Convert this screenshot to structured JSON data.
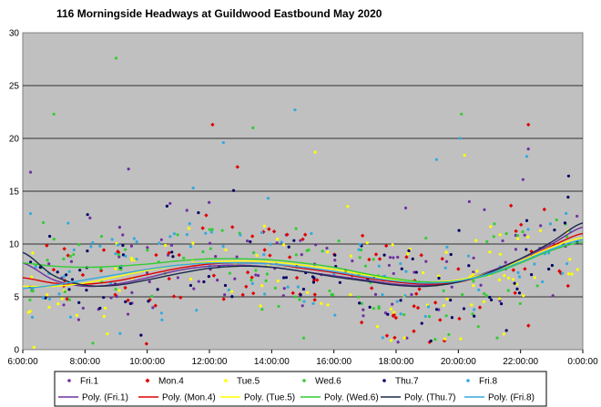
{
  "chart_data": {
    "type": "scatter",
    "title": "116 Morningside  Headways  at Guildwood  Eastbound  May 2020",
    "xlabel": "",
    "ylabel": "",
    "x_ticks": [
      "6:00:00",
      "8:00:00",
      "10:00:00",
      "12:00:00",
      "14:00:00",
      "16:00:00",
      "18:00:00",
      "20:00:00",
      "22:00:00",
      "0:00:00"
    ],
    "x_range_hours": [
      6,
      24
    ],
    "ylim": [
      0,
      30
    ],
    "y_ticks": [
      0,
      5,
      10,
      15,
      20,
      25,
      30
    ],
    "grid": "horizontal",
    "plot_background": "#c0c0c0",
    "legend_position": "bottom",
    "series": [
      {
        "name": "Fri.1",
        "color": "#7030a0",
        "marker": "dot"
      },
      {
        "name": "Mon.4",
        "color": "#e00000",
        "marker": "diamond"
      },
      {
        "name": "Tue.5",
        "color": "#ffff00",
        "marker": "dot"
      },
      {
        "name": "Wed.6",
        "color": "#33cc33",
        "marker": "dot"
      },
      {
        "name": "Thu.7",
        "color": "#000066",
        "marker": "dot"
      },
      {
        "name": "Fri.8",
        "color": "#33aadd",
        "marker": "dot"
      }
    ],
    "trendlines": [
      {
        "name": "Poly. (Fri.1)",
        "color": "#7030a0",
        "points": [
          [
            6,
            8.2
          ],
          [
            7,
            6.6
          ],
          [
            8,
            6.0
          ],
          [
            9,
            6.2
          ],
          [
            10,
            6.8
          ],
          [
            11,
            7.5
          ],
          [
            12,
            7.9
          ],
          [
            13,
            8.0
          ],
          [
            14,
            7.8
          ],
          [
            15,
            7.4
          ],
          [
            16,
            7.0
          ],
          [
            17,
            6.6
          ],
          [
            18,
            6.2
          ],
          [
            19,
            6.1
          ],
          [
            20,
            6.5
          ],
          [
            21,
            7.4
          ],
          [
            22,
            8.6
          ],
          [
            23,
            10.0
          ],
          [
            24,
            11.6
          ]
        ]
      },
      {
        "name": "Poly. (Mon.4)",
        "color": "#e00000",
        "points": [
          [
            6,
            6.8
          ],
          [
            7,
            6.3
          ],
          [
            8,
            6.2
          ],
          [
            9,
            6.5
          ],
          [
            10,
            7.1
          ],
          [
            11,
            7.7
          ],
          [
            12,
            8.1
          ],
          [
            13,
            8.2
          ],
          [
            14,
            8.1
          ],
          [
            15,
            7.7
          ],
          [
            16,
            7.3
          ],
          [
            17,
            6.8
          ],
          [
            18,
            6.4
          ],
          [
            19,
            6.2
          ],
          [
            20,
            6.4
          ],
          [
            21,
            7.2
          ],
          [
            22,
            8.4
          ],
          [
            23,
            9.8
          ],
          [
            24,
            11.0
          ]
        ]
      },
      {
        "name": "Poly. (Tue.5)",
        "color": "#ffff00",
        "points": [
          [
            6,
            6.0
          ],
          [
            7,
            6.0
          ],
          [
            8,
            6.3
          ],
          [
            9,
            6.9
          ],
          [
            10,
            7.5
          ],
          [
            11,
            8.0
          ],
          [
            12,
            8.3
          ],
          [
            13,
            8.4
          ],
          [
            14,
            8.3
          ],
          [
            15,
            8.0
          ],
          [
            16,
            7.6
          ],
          [
            17,
            7.1
          ],
          [
            18,
            6.6
          ],
          [
            19,
            6.4
          ],
          [
            20,
            6.6
          ],
          [
            21,
            7.3
          ],
          [
            22,
            8.4
          ],
          [
            23,
            9.7
          ],
          [
            24,
            10.6
          ]
        ]
      },
      {
        "name": "Poly. (Wed.6)",
        "color": "#33cc33",
        "points": [
          [
            6,
            8.2
          ],
          [
            7,
            7.9
          ],
          [
            8,
            7.8
          ],
          [
            9,
            7.9
          ],
          [
            10,
            8.1
          ],
          [
            11,
            8.4
          ],
          [
            12,
            8.6
          ],
          [
            13,
            8.6
          ],
          [
            14,
            8.5
          ],
          [
            15,
            8.2
          ],
          [
            16,
            7.8
          ],
          [
            17,
            7.2
          ],
          [
            18,
            6.7
          ],
          [
            19,
            6.4
          ],
          [
            20,
            6.5
          ],
          [
            21,
            7.1
          ],
          [
            22,
            8.2
          ],
          [
            23,
            9.4
          ],
          [
            24,
            10.2
          ]
        ]
      },
      {
        "name": "Poly. (Thu.7)",
        "color": "#1a2a4a",
        "points": [
          [
            6,
            9.2
          ],
          [
            7,
            7.0
          ],
          [
            8,
            6.1
          ],
          [
            9,
            6.1
          ],
          [
            10,
            6.6
          ],
          [
            11,
            7.2
          ],
          [
            12,
            7.7
          ],
          [
            13,
            7.9
          ],
          [
            14,
            7.8
          ],
          [
            15,
            7.4
          ],
          [
            16,
            6.9
          ],
          [
            17,
            6.5
          ],
          [
            18,
            6.1
          ],
          [
            19,
            6.0
          ],
          [
            20,
            6.4
          ],
          [
            21,
            7.3
          ],
          [
            22,
            8.6
          ],
          [
            23,
            10.2
          ],
          [
            24,
            12.0
          ]
        ]
      },
      {
        "name": "Poly. (Fri.8)",
        "color": "#33aadd",
        "points": [
          [
            6,
            5.8
          ],
          [
            7,
            6.1
          ],
          [
            8,
            6.6
          ],
          [
            9,
            7.1
          ],
          [
            10,
            7.6
          ],
          [
            11,
            8.0
          ],
          [
            12,
            8.2
          ],
          [
            13,
            8.2
          ],
          [
            14,
            8.1
          ],
          [
            15,
            7.8
          ],
          [
            16,
            7.4
          ],
          [
            17,
            6.9
          ],
          [
            18,
            6.5
          ],
          [
            19,
            6.3
          ],
          [
            20,
            6.5
          ],
          [
            21,
            7.2
          ],
          [
            22,
            8.3
          ],
          [
            23,
            9.5
          ],
          [
            24,
            10.4
          ]
        ]
      }
    ],
    "notable_points": [
      {
        "series": "Wed.6",
        "x": 9.0,
        "y": 27.6
      },
      {
        "series": "Fri.8",
        "x": 14.75,
        "y": 22.7
      },
      {
        "series": "Wed.6",
        "x": 7.0,
        "y": 22.3
      },
      {
        "series": "Wed.6",
        "x": 20.1,
        "y": 22.3
      },
      {
        "series": "Mon.4",
        "x": 12.1,
        "y": 21.3
      },
      {
        "series": "Mon.4",
        "x": 22.25,
        "y": 21.3
      },
      {
        "series": "Wed.6",
        "x": 13.4,
        "y": 21.0
      },
      {
        "series": "Fri.8",
        "x": 20.05,
        "y": 20.0
      },
      {
        "series": "Fri.8",
        "x": 12.45,
        "y": 19.6
      },
      {
        "series": "Fri.1",
        "x": 22.25,
        "y": 19.0
      },
      {
        "series": "Tue.5",
        "x": 15.4,
        "y": 18.7
      },
      {
        "series": "Fri.1",
        "x": 6.25,
        "y": 16.8
      },
      {
        "series": "Fri.1",
        "x": 9.4,
        "y": 17.1
      },
      {
        "series": "Mon.4",
        "x": 12.9,
        "y": 17.3
      },
      {
        "series": "Fri.8",
        "x": 19.3,
        "y": 18.0
      },
      {
        "series": "Tue.5",
        "x": 20.2,
        "y": 18.4
      },
      {
        "series": "Fri.8",
        "x": 22.2,
        "y": 18.3
      }
    ]
  }
}
